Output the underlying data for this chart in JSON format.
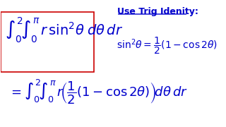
{
  "bg_color": "#ffffff",
  "text_color": "#0000cc",
  "highlight_color": "#cc0000",
  "title_color": "#0000cc",
  "figsize": [
    3.2,
    1.8
  ],
  "dpi": 100
}
